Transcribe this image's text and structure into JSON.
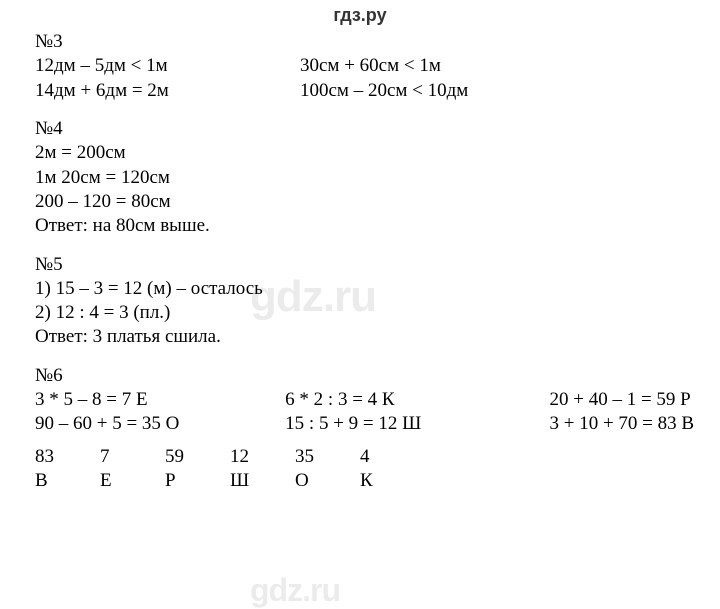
{
  "header": {
    "logo": "гдз.ру"
  },
  "watermarks": {
    "mid": "gdz.ru",
    "bottom": "gdz.ru"
  },
  "ex3": {
    "title": "№3",
    "r1a": "12дм – 5дм < 1м",
    "r1b": "30см + 60см < 1м",
    "r2a": "14дм + 6дм = 2м",
    "r2b": "100см – 20см < 10дм"
  },
  "ex4": {
    "title": "№4",
    "l1": "2м = 200см",
    "l2": "1м 20см = 120см",
    "l3": "200 – 120 = 80см",
    "ans": "Ответ: на 80см выше."
  },
  "ex5": {
    "title": "№5",
    "l1": "1) 15 – 3 = 12 (м) – осталось",
    "l2": "2) 12 : 4 = 3 (пл.)",
    "ans": "Ответ: 3 платья сшила."
  },
  "ex6": {
    "title": "№6",
    "r1a": "3 * 5 – 8 = 7 Е",
    "r1b": "6 * 2 : 3 = 4 К",
    "r1c": "20 + 40 – 1 = 59 Р",
    "r2a": "90 – 60 + 5 = 35 О",
    "r2b": "15 : 5 + 9 = 12 Ш",
    "r2c": "3 + 10 + 70 = 83 В",
    "nums": [
      "83",
      "7",
      "59",
      "12",
      "35",
      "4"
    ],
    "lets": [
      "В",
      "Е",
      "Р",
      "Ш",
      "О",
      "К"
    ]
  }
}
